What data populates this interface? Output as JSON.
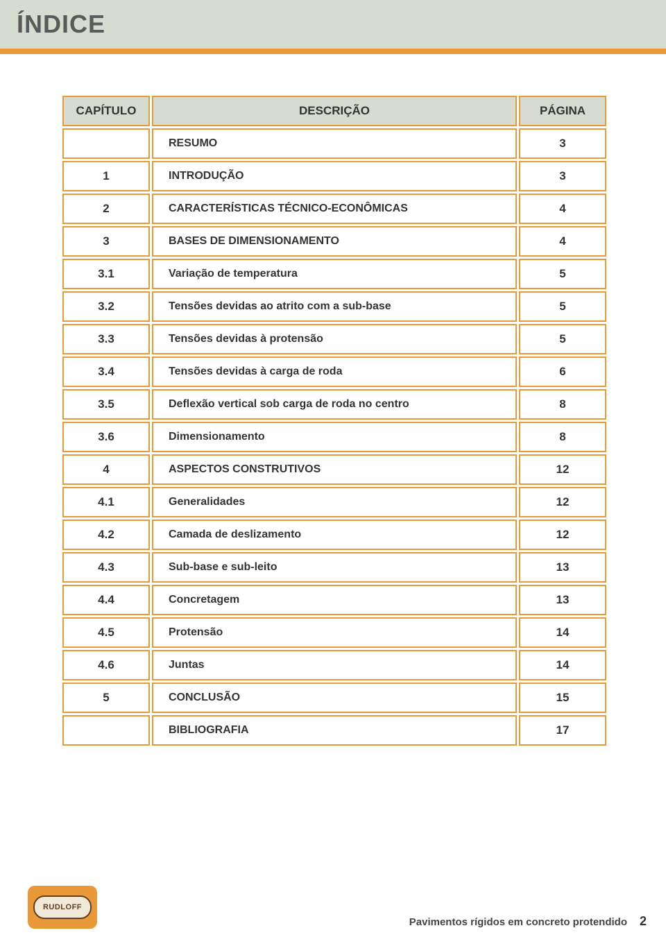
{
  "header": {
    "title": "ÍNDICE"
  },
  "colors": {
    "header_bg": "#d6dcd0",
    "divider": "#e99937",
    "border": "#e99937",
    "text": "#333333",
    "header_text": "#5a5a5a"
  },
  "toc": {
    "columns": {
      "capitulo": "CAPÍTULO",
      "descricao": "DESCRIÇÃO",
      "pagina": "PÁGINA"
    },
    "rows": [
      {
        "cap": "",
        "desc": "RESUMO",
        "page": "3"
      },
      {
        "cap": "1",
        "desc": "INTRODUÇÃO",
        "page": "3"
      },
      {
        "cap": "2",
        "desc": "CARACTERÍSTICAS TÉCNICO-ECONÔMICAS",
        "page": "4"
      },
      {
        "cap": "3",
        "desc": "BASES DE DIMENSIONAMENTO",
        "page": "4"
      },
      {
        "cap": "3.1",
        "desc": "Variação de temperatura",
        "page": "5"
      },
      {
        "cap": "3.2",
        "desc": "Tensões devidas ao atrito com a sub-base",
        "page": "5"
      },
      {
        "cap": "3.3",
        "desc": "Tensões devidas à protensão",
        "page": "5"
      },
      {
        "cap": "3.4",
        "desc": "Tensões devidas à carga de roda",
        "page": "6"
      },
      {
        "cap": "3.5",
        "desc": "Deflexão vertical sob carga de roda no centro",
        "page": "8"
      },
      {
        "cap": "3.6",
        "desc": "Dimensionamento",
        "page": "8"
      },
      {
        "cap": "4",
        "desc": "ASPECTOS CONSTRUTIVOS",
        "page": "12"
      },
      {
        "cap": "4.1",
        "desc": "Generalidades",
        "page": "12"
      },
      {
        "cap": "4.2",
        "desc": "Camada de deslizamento",
        "page": "12"
      },
      {
        "cap": "4.3",
        "desc": "Sub-base e sub-leito",
        "page": "13"
      },
      {
        "cap": "4.4",
        "desc": "Concretagem",
        "page": "13"
      },
      {
        "cap": "4.5",
        "desc": "Protensão",
        "page": "14"
      },
      {
        "cap": "4.6",
        "desc": "Juntas",
        "page": "14"
      },
      {
        "cap": "5",
        "desc": "CONCLUSÃO",
        "page": "15"
      },
      {
        "cap": "",
        "desc": "BIBLIOGRAFIA",
        "page": "17"
      }
    ]
  },
  "logo": {
    "text": "RUDLOFF"
  },
  "footer": {
    "caption": "Pavimentos rígidos em concreto protendido",
    "page_number": "2"
  }
}
